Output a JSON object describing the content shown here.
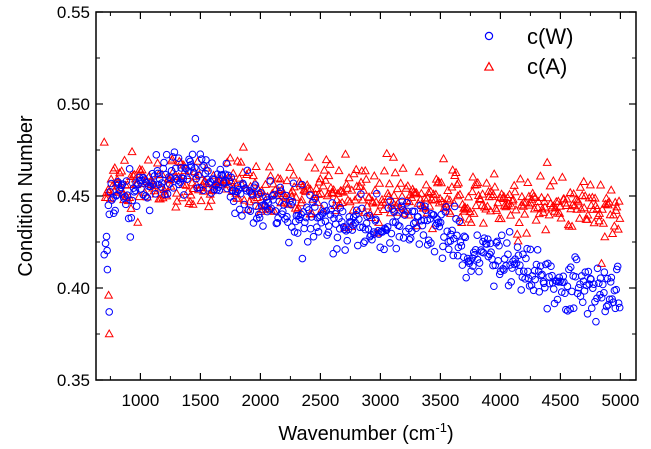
{
  "chart_data": {
    "type": "scatter",
    "xlabel": "Wavenumber (cm",
    "xlabel_sup": "-1",
    "xlabel_end": ")",
    "ylabel": "Condition Number",
    "xlim": [
      630,
      5130
    ],
    "ylim": [
      0.35,
      0.55
    ],
    "x_ticks": [
      1000,
      1500,
      2000,
      2500,
      3000,
      3500,
      4000,
      4500,
      5000
    ],
    "x_tick_labels": [
      "1000",
      "1500",
      "2000",
      "2500",
      "3000",
      "3500",
      "4000",
      "4500",
      "5000"
    ],
    "y_ticks": [
      0.35,
      0.4,
      0.45,
      0.5,
      0.55
    ],
    "y_tick_labels": [
      "0.35",
      "0.40",
      "0.45",
      "0.50",
      "0.55"
    ],
    "grid": false,
    "legend_position": "top-right",
    "series": [
      {
        "name": "c(W)",
        "marker": "circle",
        "color": "#0000ff",
        "note": "approximate trend read from the plot; individual points follow this trend with scatter",
        "x": [
          700,
          750,
          800,
          900,
          1000,
          1200,
          1400,
          1500,
          1600,
          1700,
          1800,
          2000,
          2200,
          2350,
          2500,
          2700,
          3000,
          3300,
          3500,
          3600,
          3700,
          3800,
          3900,
          4000,
          4200,
          4400,
          4600,
          4800,
          5000
        ],
        "y": [
          0.415,
          0.45,
          0.455,
          0.45,
          0.455,
          0.46,
          0.465,
          0.463,
          0.46,
          0.455,
          0.45,
          0.447,
          0.444,
          0.44,
          0.437,
          0.435,
          0.437,
          0.437,
          0.432,
          0.425,
          0.42,
          0.42,
          0.417,
          0.415,
          0.41,
          0.405,
          0.402,
          0.4,
          0.397
        ]
      },
      {
        "name": "c(A)",
        "marker": "triangle",
        "color": "#ff0000",
        "note": "approximate trend read from the plot; individual points follow this trend with scatter",
        "x": [
          700,
          750,
          800,
          900,
          1000,
          1200,
          1400,
          1600,
          1800,
          2000,
          2500,
          3000,
          3500,
          4000,
          4500,
          5000
        ],
        "y": [
          0.45,
          0.455,
          0.46,
          0.458,
          0.455,
          0.457,
          0.455,
          0.455,
          0.455,
          0.452,
          0.452,
          0.45,
          0.449,
          0.447,
          0.445,
          0.443
        ]
      }
    ]
  }
}
